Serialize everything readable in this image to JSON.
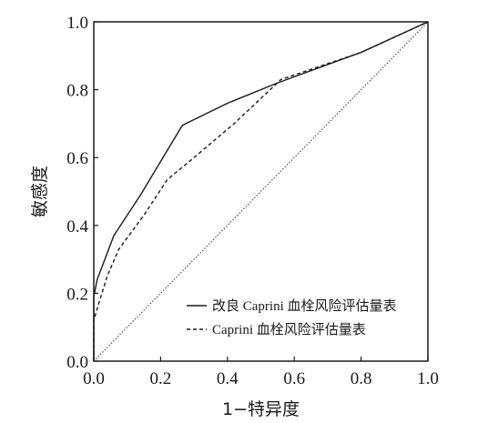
{
  "chart_data": {
    "type": "line",
    "xlabel": "1−特异度",
    "ylabel": "敏感度",
    "xlim": [
      0.0,
      1.0
    ],
    "ylim": [
      0.0,
      1.0
    ],
    "xticks": [
      "0.0",
      "0.2",
      "0.4",
      "0.6",
      "0.8",
      "1.0"
    ],
    "yticks": [
      "0.0",
      "0.2",
      "0.4",
      "0.6",
      "0.8",
      "1.0"
    ],
    "grid": false,
    "legend_position": "bottom-right",
    "series": [
      {
        "name": "改良 Caprini 血栓风险评估量表",
        "style": "solid",
        "color": "#1a1a1a",
        "points": [
          [
            0.0,
            0.0
          ],
          [
            0.0,
            0.19
          ],
          [
            0.01,
            0.24
          ],
          [
            0.06,
            0.37
          ],
          [
            0.14,
            0.49
          ],
          [
            0.265,
            0.695
          ],
          [
            0.4,
            0.76
          ],
          [
            0.55,
            0.82
          ],
          [
            0.8,
            0.91
          ],
          [
            1.0,
            1.0
          ]
        ]
      },
      {
        "name": "Caprini 血栓风险评估量表",
        "style": "dashed",
        "color": "#1a1a1a",
        "points": [
          [
            0.0,
            0.0
          ],
          [
            0.0,
            0.12
          ],
          [
            0.015,
            0.17
          ],
          [
            0.04,
            0.25
          ],
          [
            0.075,
            0.33
          ],
          [
            0.15,
            0.43
          ],
          [
            0.22,
            0.535
          ],
          [
            0.3,
            0.6
          ],
          [
            0.42,
            0.7
          ],
          [
            0.56,
            0.83
          ],
          [
            0.8,
            0.91
          ],
          [
            1.0,
            1.0
          ]
        ]
      },
      {
        "name": "",
        "style": "dotted",
        "color": "#1a1a1a",
        "points": [
          [
            0.0,
            0.0
          ],
          [
            1.0,
            1.0
          ]
        ]
      }
    ]
  }
}
